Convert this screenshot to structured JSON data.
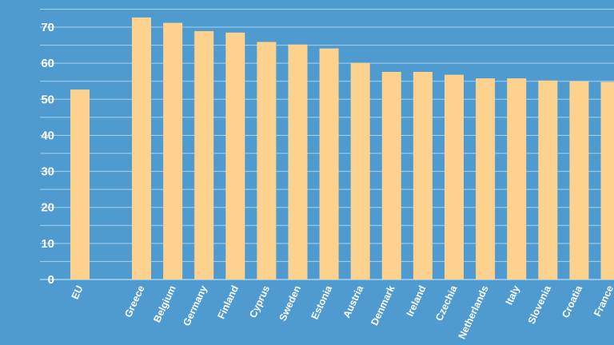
{
  "chart_data": {
    "type": "bar",
    "categories": [
      "EU",
      "Greece",
      "Belgium",
      "Germany",
      "Finland",
      "Cyprus",
      "Sweden",
      "Estonia",
      "Austria",
      "Denmark",
      "Ireland",
      "Czechia",
      "Netherlands",
      "Italy",
      "Slovenia",
      "Croatia",
      "France"
    ],
    "values": [
      52.7,
      72.7,
      71.2,
      68.9,
      68.5,
      65.9,
      65.2,
      64.1,
      60.1,
      57.6,
      57.6,
      56.8,
      55.8,
      55.8,
      55.2,
      55.0,
      54.8
    ],
    "ylim": [
      0,
      75
    ],
    "yticks": [
      0,
      10,
      20,
      30,
      40,
      50,
      60,
      70
    ],
    "gridlines_every": 5,
    "grid": true,
    "colors": {
      "background": "#4f9bd0",
      "bar": "#fdd28f",
      "grid": "#a9d2ee",
      "text": "#ffffff"
    }
  }
}
